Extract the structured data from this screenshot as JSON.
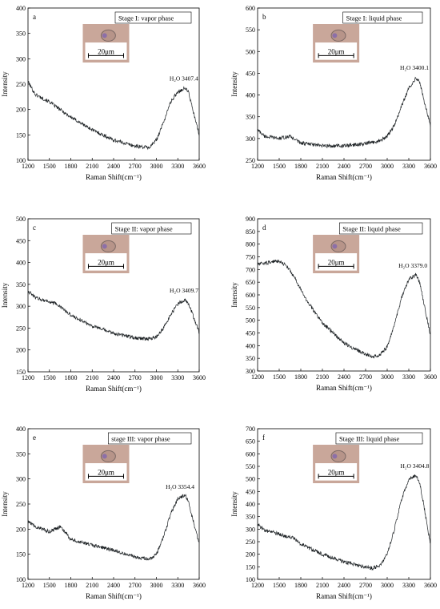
{
  "chart_data": [
    {
      "type": "line",
      "panel": "a",
      "title": "Stage I: vapor phase",
      "xlabel": "Raman Shift(cm⁻¹)",
      "ylabel": "Intensity",
      "xlim": [
        1200,
        3600
      ],
      "ylim": [
        100,
        400
      ],
      "xticks": [
        1200,
        1500,
        1800,
        2100,
        2400,
        2700,
        3000,
        3300,
        3600
      ],
      "yticks": [
        100,
        150,
        200,
        250,
        300,
        350,
        400
      ],
      "peak_label": "H₂O 3407.4",
      "peak_x": 3407.4,
      "scale_bar": "20μm",
      "series": [
        {
          "x": [
            1200,
            1300,
            1500,
            1800,
            2100,
            2400,
            2700,
            2900,
            3000,
            3100,
            3200,
            3300,
            3400,
            3450,
            3500,
            3600
          ],
          "values": [
            255,
            230,
            215,
            185,
            160,
            140,
            128,
            125,
            140,
            175,
            215,
            235,
            242,
            235,
            205,
            150
          ]
        }
      ]
    },
    {
      "type": "line",
      "panel": "b",
      "title": "Stage I: liquid phase",
      "xlabel": "Raman Shift(cm⁻¹)",
      "ylabel": "Intensity",
      "xlim": [
        1200,
        3600
      ],
      "ylim": [
        250,
        600
      ],
      "xticks": [
        1200,
        1500,
        1800,
        2100,
        2400,
        2700,
        3000,
        3300,
        3600
      ],
      "yticks": [
        250,
        300,
        350,
        400,
        450,
        500,
        550,
        600
      ],
      "peak_label": "H₂O 3400.1",
      "peak_x": 3400.1,
      "scale_bar": "20μm",
      "series": [
        {
          "x": [
            1200,
            1300,
            1500,
            1650,
            1800,
            2100,
            2400,
            2700,
            2900,
            3000,
            3100,
            3200,
            3300,
            3400,
            3450,
            3500,
            3600
          ],
          "values": [
            320,
            305,
            300,
            305,
            290,
            283,
            283,
            288,
            295,
            305,
            330,
            375,
            415,
            440,
            430,
            395,
            330
          ]
        }
      ]
    },
    {
      "type": "line",
      "panel": "c",
      "title": "Stage II: vapor phase",
      "xlabel": "Raman Shift(cm⁻¹)",
      "ylabel": "Intensity",
      "xlim": [
        1200,
        3600
      ],
      "ylim": [
        150,
        500
      ],
      "xticks": [
        1200,
        1500,
        1800,
        2100,
        2400,
        2700,
        3000,
        3300,
        3600
      ],
      "yticks": [
        150,
        200,
        250,
        300,
        350,
        400,
        450,
        500
      ],
      "peak_label": "H₂O 3409.7",
      "peak_x": 3409.7,
      "scale_bar": "20μm",
      "series": [
        {
          "x": [
            1200,
            1300,
            1500,
            1600,
            1800,
            2100,
            2400,
            2700,
            2900,
            3000,
            3100,
            3200,
            3300,
            3400,
            3450,
            3500,
            3600
          ],
          "values": [
            335,
            320,
            310,
            305,
            280,
            255,
            238,
            228,
            225,
            230,
            250,
            280,
            305,
            315,
            305,
            285,
            240
          ]
        }
      ]
    },
    {
      "type": "line",
      "panel": "d",
      "title": "Stage II: liquid phase",
      "xlabel": "Raman Shift(cm⁻¹)",
      "ylabel": "Intensity",
      "xlim": [
        1200,
        3600
      ],
      "ylim": [
        300,
        900
      ],
      "xticks": [
        1200,
        1500,
        1800,
        2100,
        2400,
        2700,
        3000,
        3300,
        3600
      ],
      "yticks": [
        300,
        350,
        400,
        450,
        500,
        550,
        600,
        650,
        700,
        750,
        800,
        850,
        900
      ],
      "peak_label": "H₂O 3379.0",
      "peak_x": 3379.0,
      "scale_bar": "20μm",
      "series": [
        {
          "x": [
            1200,
            1300,
            1400,
            1500,
            1600,
            1700,
            1800,
            1900,
            2100,
            2400,
            2700,
            2800,
            2900,
            3000,
            3100,
            3200,
            3300,
            3400,
            3450,
            3500,
            3600
          ],
          "values": [
            720,
            725,
            730,
            735,
            715,
            675,
            620,
            570,
            490,
            410,
            365,
            358,
            365,
            395,
            480,
            590,
            660,
            680,
            650,
            580,
            440
          ]
        }
      ]
    },
    {
      "type": "line",
      "panel": "e",
      "title": "stage III: vapor phase",
      "xlabel": "Raman Shift(cm⁻¹)",
      "ylabel": "Intensity",
      "xlim": [
        1200,
        3600
      ],
      "ylim": [
        100,
        400
      ],
      "xticks": [
        1200,
        1500,
        1800,
        2100,
        2400,
        2700,
        3000,
        3300,
        3600
      ],
      "yticks": [
        100,
        150,
        200,
        250,
        300,
        350,
        400
      ],
      "peak_label": "H₂O 3354.4",
      "peak_x": 3354.4,
      "scale_bar": "20μm",
      "series": [
        {
          "x": [
            1200,
            1300,
            1500,
            1650,
            1800,
            2100,
            2400,
            2700,
            2900,
            3000,
            3100,
            3200,
            3300,
            3400,
            3450,
            3500,
            3600
          ],
          "values": [
            215,
            205,
            195,
            205,
            180,
            168,
            158,
            145,
            140,
            150,
            185,
            230,
            260,
            268,
            255,
            225,
            170
          ]
        }
      ]
    },
    {
      "type": "line",
      "panel": "f",
      "title": "Stage III: liquid phase",
      "xlabel": "Raman Shift(cm⁻¹)",
      "ylabel": "Intensity",
      "xlim": [
        1200,
        3600
      ],
      "ylim": [
        100,
        700
      ],
      "xticks": [
        1200,
        1500,
        1800,
        2100,
        2400,
        2700,
        3000,
        3300,
        3600
      ],
      "yticks": [
        100,
        150,
        200,
        250,
        300,
        350,
        400,
        450,
        500,
        550,
        600,
        650,
        700
      ],
      "peak_label": "H₂O 3404.8",
      "peak_x": 3404.8,
      "scale_bar": "20μm",
      "series": [
        {
          "x": [
            1200,
            1300,
            1500,
            1600,
            1700,
            1800,
            2100,
            2400,
            2700,
            2800,
            2900,
            3000,
            3100,
            3200,
            3300,
            3400,
            3450,
            3500,
            3600
          ],
          "values": [
            320,
            295,
            280,
            270,
            265,
            240,
            200,
            170,
            148,
            145,
            155,
            200,
            300,
            420,
            500,
            515,
            485,
            410,
            240
          ]
        }
      ]
    }
  ]
}
